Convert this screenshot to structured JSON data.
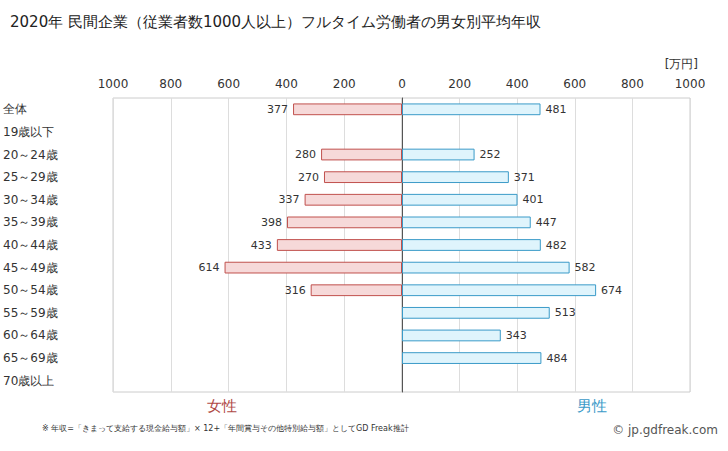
{
  "chart_data": {
    "type": "bar",
    "orientation": "horizontal",
    "title": "2020年 民間企業（従業者数1000人以上）フルタイム労働者の男女別平均年収",
    "xlabel": "[万円]",
    "categories": [
      "全体",
      "19歳以下",
      "20～24歳",
      "25～29歳",
      "30～34歳",
      "35～39歳",
      "40～44歳",
      "45～49歳",
      "50～54歳",
      "55～59歳",
      "60～64歳",
      "65～69歳",
      "70歳以上"
    ],
    "series": [
      {
        "name": "女性",
        "color": "#f6d9d9",
        "values": [
          377,
          null,
          280,
          270,
          337,
          398,
          433,
          614,
          316,
          null,
          null,
          null,
          null
        ]
      },
      {
        "name": "男性",
        "color": "#dff4fc",
        "values": [
          481,
          null,
          252,
          371,
          401,
          447,
          482,
          582,
          674,
          513,
          343,
          484,
          null
        ]
      }
    ],
    "xlim": [
      0,
      1000
    ],
    "xticks": [
      0,
      200,
      400,
      600,
      800,
      1000
    ],
    "grid": true,
    "data_labels": true,
    "annotations": [
      "※ 年収=「きまって支給する現金給与額」× 12+「年間賞与その他特別給与額」としてGD Freak推計",
      "© jp.gdfreak.com"
    ]
  }
}
